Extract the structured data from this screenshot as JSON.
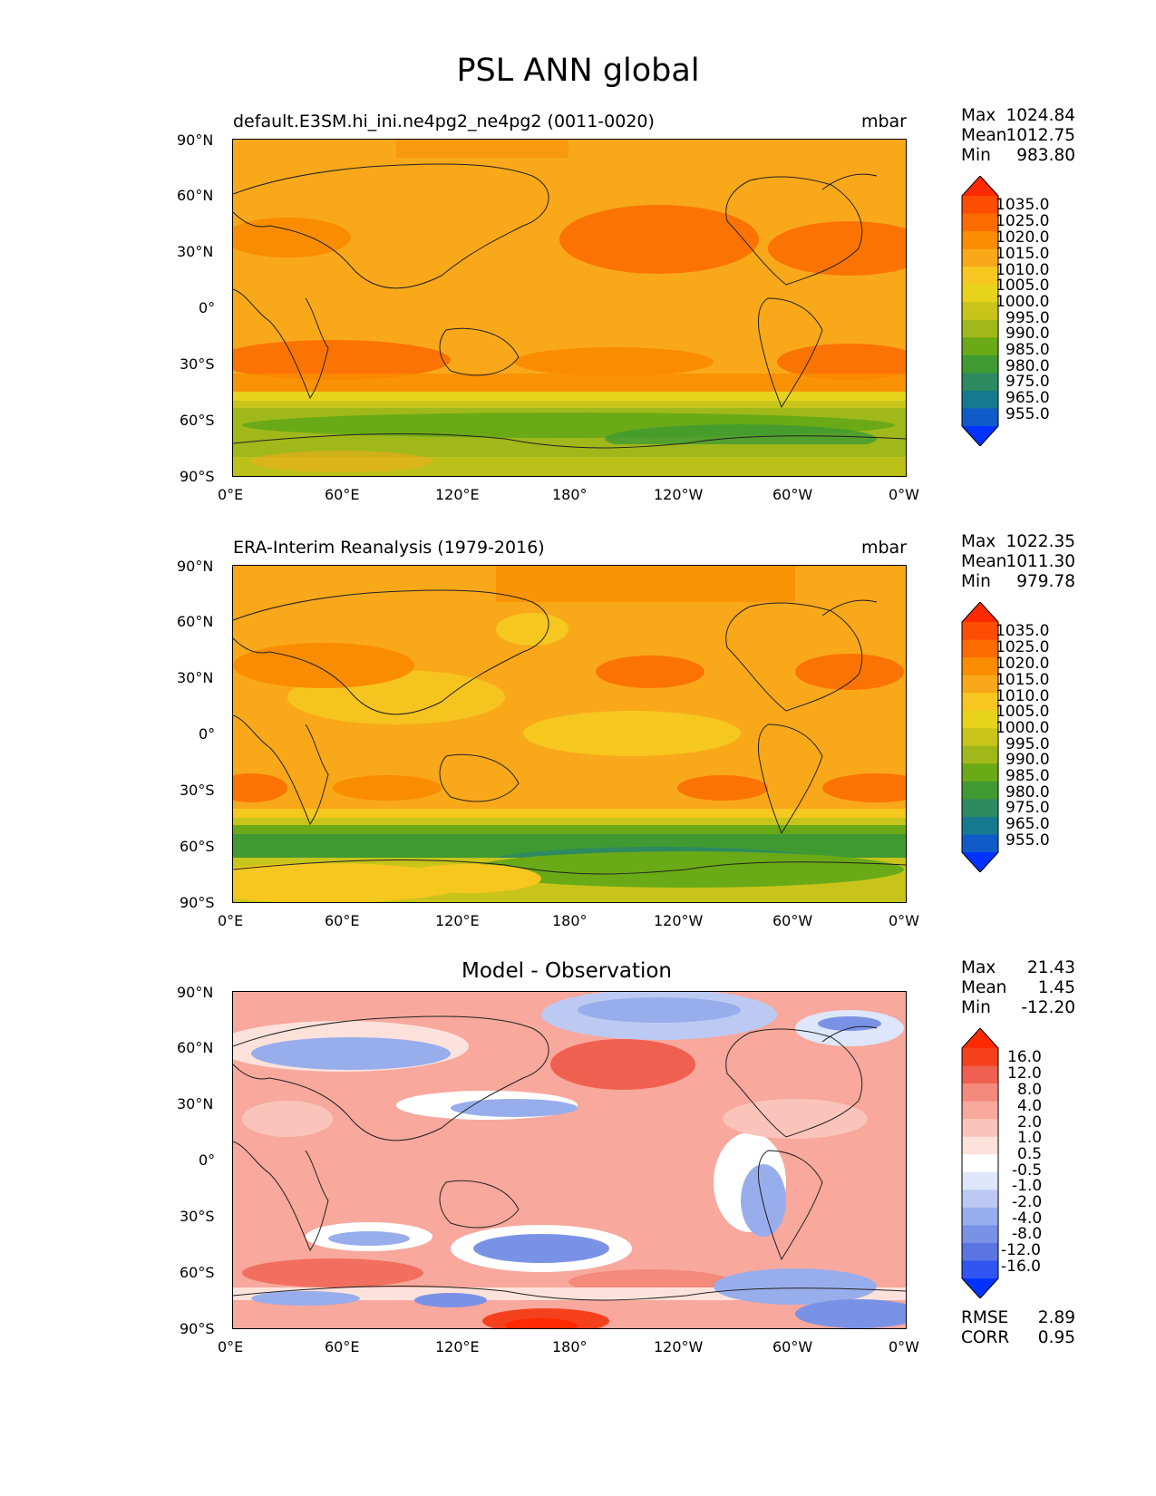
{
  "figure": {
    "title": "PSL ANN global"
  },
  "x_ticks": [
    "0°E",
    "60°E",
    "120°E",
    "180°",
    "120°W",
    "60°W",
    "0°W"
  ],
  "y_ticks": [
    "90°N",
    "60°N",
    "30°N",
    "0°",
    "30°S",
    "60°S",
    "90°S"
  ],
  "panels": [
    {
      "title": "default.E3SM.hi_ini.ne4pg2_ne4pg2 (0011-0020)",
      "units": "mbar",
      "stats": {
        "max_label": "Max",
        "max": "1024.84",
        "mean_label": "Mean",
        "mean": "1012.75",
        "min_label": "Min",
        "min": "983.80"
      },
      "colorbar_labels": [
        "1035.0",
        "1025.0",
        "1020.0",
        "1015.0",
        "1010.0",
        "1005.0",
        "1000.0",
        "995.0",
        "990.0",
        "985.0",
        "980.0",
        "975.0",
        "965.0",
        "955.0"
      ]
    },
    {
      "title": "ERA-Interim Reanalysis (1979-2016)",
      "units": "mbar",
      "stats": {
        "max_label": "Max",
        "max": "1022.35",
        "mean_label": "Mean",
        "mean": "1011.30",
        "min_label": "Min",
        "min": "979.78"
      },
      "colorbar_labels": [
        "1035.0",
        "1025.0",
        "1020.0",
        "1015.0",
        "1010.0",
        "1005.0",
        "1000.0",
        "995.0",
        "990.0",
        "985.0",
        "980.0",
        "975.0",
        "965.0",
        "955.0"
      ]
    },
    {
      "title": "Model - Observation",
      "units": "",
      "stats": {
        "max_label": "Max",
        "max": "21.43",
        "mean_label": "Mean",
        "mean": "1.45",
        "min_label": "Min",
        "min": "-12.20",
        "rmse_label": "RMSE",
        "rmse": "2.89",
        "corr_label": "CORR",
        "corr": "0.95"
      },
      "colorbar_labels": [
        "16.0",
        "12.0",
        "8.0",
        "4.0",
        "2.0",
        "1.0",
        "0.5",
        "-0.5",
        "-1.0",
        "-2.0",
        "-4.0",
        "-8.0",
        "-12.0",
        "-16.0"
      ]
    }
  ],
  "colors": {
    "abs_scale": [
      "#ff2a00",
      "#fd4d00",
      "#fb6b00",
      "#fa8c00",
      "#f9a81a",
      "#f5c71f",
      "#e8d31c",
      "#c8c41a",
      "#a0b81a",
      "#6aaa16",
      "#3f9a32",
      "#2e8a60",
      "#157a90",
      "#0f5cc8",
      "#0033ff"
    ],
    "diff_scale": [
      "#ff2a00",
      "#f5401e",
      "#f06050",
      "#f48a7c",
      "#f8a89c",
      "#fac4ba",
      "#fde2dc",
      "#ffffff",
      "#dde6fa",
      "#bccaf3",
      "#98aeec",
      "#7a92e6",
      "#5a74e2",
      "#3055f0",
      "#0033ff"
    ],
    "ocean_land_line": "#222222"
  }
}
